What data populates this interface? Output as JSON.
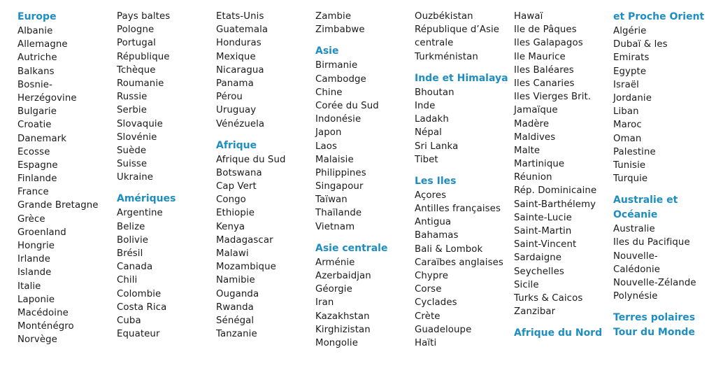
{
  "accent_color": "#1e8ec2",
  "columns": [
    [
      {
        "h": "Europe"
      },
      "Albanie",
      "Allemagne",
      "Autriche",
      "Balkans",
      "Bosnie-",
      "Herzégovine",
      "Bulgarie",
      "Croatie",
      "Danemark",
      "Ecosse",
      "Espagne",
      "Finlande",
      "France",
      "Grande Bretagne",
      "Grèce",
      "Groenland",
      "Hongrie",
      "Irlande",
      "Islande",
      "Italie",
      "Laponie",
      "Macédoine",
      "Monténégro",
      "Norvège"
    ],
    [
      "Pays baltes",
      "Pologne",
      "Portugal",
      "République",
      "Tchèque",
      "Roumanie",
      "Russie",
      "Serbie",
      "Slovaquie",
      "Slovénie",
      "Suède",
      "Suisse",
      "Ukraine",
      {
        "h": "Amériques"
      },
      "Argentine",
      "Belize",
      "Bolivie",
      "Brésil",
      "Canada",
      "Chili",
      "Colombie",
      "Costa Rica",
      "Cuba",
      "Equateur"
    ],
    [
      "Etats-Unis",
      "Guatemala",
      "Honduras",
      "Mexique",
      "Nicaragua",
      "Panama",
      "Pérou",
      "Uruguay",
      "Vénézuela",
      {
        "h": "Afrique"
      },
      "Afrique du Sud",
      "Botswana",
      "Cap Vert",
      "Congo",
      "Ethiopie",
      "Kenya",
      "Madagascar",
      "Malawi",
      "Mozambique",
      "Namibie",
      "Ouganda",
      "Rwanda",
      "Sénégal",
      "Tanzanie"
    ],
    [
      "Zambie",
      "Zimbabwe",
      {
        "h": "Asie"
      },
      "Birmanie",
      "Cambodge",
      "Chine",
      "Corée du Sud",
      "Indonésie",
      "Japon",
      "Laos",
      "Malaisie",
      "Philippines",
      "Singapour",
      "Taïwan",
      "Thaïlande",
      "Vietnam",
      {
        "h": "Asie centrale"
      },
      "Arménie",
      "Azerbaidjan",
      "Géorgie",
      "Iran",
      "Kazakhstan",
      "Kirghizistan",
      "Mongolie"
    ],
    [
      "Ouzbékistan",
      "République d’Asie",
      "centrale",
      "Turkménistan",
      {
        "h": "Inde et Himalaya"
      },
      "Bhoutan",
      "Inde",
      "Ladakh",
      "Népal",
      "Sri Lanka",
      "Tibet",
      {
        "h": "Les Iles"
      },
      "Açores",
      "Antilles françaises",
      "Antigua",
      "Bahamas",
      "Bali & Lombok",
      "Caraïbes anglaises",
      "Chypre",
      "Corse",
      "Cyclades",
      "Crète",
      "Guadeloupe",
      "Haïti"
    ],
    [
      "Hawaï",
      "Ile de Pâques",
      "Iles Galapagos",
      "Ile Maurice",
      "Iles Baléares",
      "Iles Canaries",
      "Iles Vierges Brit.",
      "Jamaïque",
      "Madère",
      "Maldives",
      "Malte",
      "Martinique",
      "Réunion",
      "Rép. Dominicaine",
      "Saint-Barthélemy",
      "Sainte-Lucie",
      "Saint-Martin",
      "Saint-Vincent",
      "Sardaigne",
      "Seychelles",
      "Sicile",
      "Turks & Caicos",
      "Zanzibar",
      {
        "h": "Afrique du Nord"
      }
    ],
    [
      {
        "h": "et Proche Orient"
      },
      "Algérie",
      "Dubaï & les",
      "Emirats",
      "Egypte",
      "Israël",
      "Jordanie",
      "Liban",
      "Maroc",
      "Oman",
      "Palestine",
      "Tunisie",
      "Turquie",
      {
        "h": "Australie et"
      },
      {
        "h": "Océanie",
        "cont": true
      },
      "Australie",
      "Iles du Pacifique",
      "Nouvelle-",
      "Calédonie",
      "Nouvelle-Zélande",
      "Polynésie",
      {
        "h": "Terres polaires"
      },
      {
        "h": "Tour du Monde",
        "cont": true
      }
    ]
  ]
}
